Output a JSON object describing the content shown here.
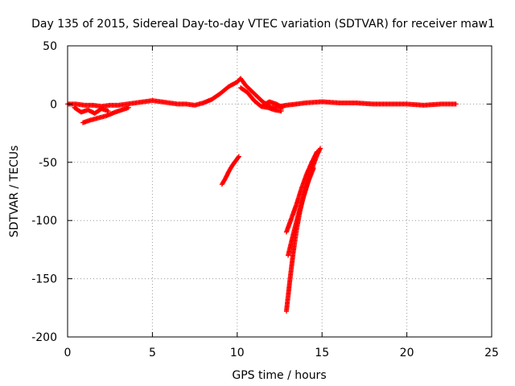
{
  "chart_data": {
    "type": "scatter",
    "title": "Day 135 of 2015, Sidereal Day-to-day VTEC variation (SDTVAR) for receiver maw1",
    "xlabel": "GPS time / hours",
    "ylabel": "SDTVAR / TECUs",
    "xlim": [
      0,
      25
    ],
    "ylim": [
      -200,
      50
    ],
    "xticks": [
      0,
      5,
      10,
      15,
      20,
      25
    ],
    "xtick_labels": [
      "0",
      "5",
      "10",
      "15",
      "20",
      "25"
    ],
    "yticks": [
      50,
      0,
      -50,
      -100,
      -150,
      -200
    ],
    "ytick_labels": [
      "50",
      "0",
      "-50",
      "-100",
      "-150",
      "-200"
    ],
    "grid": true,
    "marker": "plus",
    "color": "#ff0000",
    "series": [
      {
        "name": "main-band",
        "x": [
          0.0,
          0.5,
          1.0,
          1.5,
          2.0,
          2.5,
          3.0,
          3.5,
          4.0,
          4.5,
          5.0,
          5.5,
          6.0,
          6.5,
          7.0,
          7.5,
          8.0,
          8.5,
          9.0,
          9.5,
          10.0,
          10.2,
          10.5,
          11.0,
          11.5,
          12.0,
          12.5,
          12.9,
          13.5,
          14.0,
          15.0,
          16.0,
          17.0,
          18.0,
          19.0,
          20.0,
          21.0,
          22.0,
          22.9
        ],
        "y": [
          0,
          0,
          -1,
          -1,
          -2,
          -1,
          -1,
          0,
          1,
          2,
          3,
          2,
          1,
          0,
          0,
          -1,
          1,
          4,
          9,
          15,
          19,
          22,
          16,
          9,
          2,
          -3,
          -2,
          -1,
          0,
          1,
          2,
          1,
          1,
          0,
          0,
          0,
          -1,
          0,
          0
        ]
      },
      {
        "name": "low-arm",
        "x": [
          0.9,
          1.3,
          1.8,
          2.3,
          2.8,
          3.2,
          3.6
        ],
        "y": [
          -16,
          -14,
          -12,
          -10,
          -7,
          -5,
          -3
        ]
      },
      {
        "name": "mid-arc",
        "x": [
          10.2,
          10.6,
          11.0,
          11.4,
          11.8,
          12.2,
          12.6
        ],
        "y": [
          14,
          10,
          3,
          -2,
          -3,
          -5,
          -6
        ]
      },
      {
        "name": "mid-bump",
        "x": [
          11.5,
          11.9,
          12.3,
          12.7
        ],
        "y": [
          -1,
          2,
          0,
          -3
        ]
      },
      {
        "name": "early-cluster",
        "x": [
          0.4,
          0.8,
          1.2,
          1.6,
          2.0,
          2.4
        ],
        "y": [
          -3,
          -7,
          -5,
          -8,
          -4,
          -6
        ]
      },
      {
        "name": "mid-drop",
        "x": [
          9.1,
          9.3,
          9.5,
          9.7,
          9.9,
          10.1
        ],
        "y": [
          -69,
          -64,
          -58,
          -53,
          -49,
          -45
        ]
      },
      {
        "name": "deep-drop-left",
        "x": [
          12.9,
          13.1,
          13.3,
          13.5,
          13.7,
          13.9,
          14.1,
          14.3,
          14.5,
          14.7,
          14.9
        ],
        "y": [
          -178,
          -152,
          -128,
          -108,
          -92,
          -80,
          -70,
          -61,
          -52,
          -44,
          -38
        ]
      },
      {
        "name": "deep-drop-right",
        "x": [
          12.9,
          13.2,
          13.5,
          13.8,
          14.1,
          14.4,
          14.7
        ],
        "y": [
          -110,
          -98,
          -86,
          -72,
          -60,
          -50,
          -41
        ]
      },
      {
        "name": "deep-drop-mid",
        "x": [
          13.0,
          13.3,
          13.6,
          13.9,
          14.2,
          14.5
        ],
        "y": [
          -130,
          -112,
          -95,
          -80,
          -66,
          -55
        ]
      }
    ]
  }
}
